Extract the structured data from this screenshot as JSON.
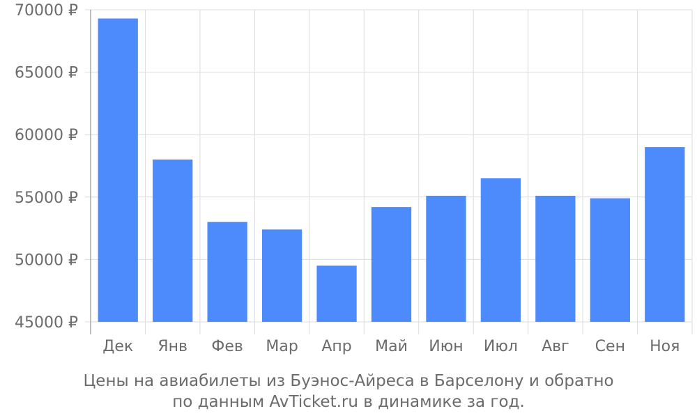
{
  "chart_data": {
    "type": "bar",
    "categories": [
      "Дек",
      "Янв",
      "Фев",
      "Мар",
      "Апр",
      "Май",
      "Июн",
      "Июл",
      "Авг",
      "Сен",
      "Ноя"
    ],
    "values": [
      69300,
      58000,
      53000,
      52400,
      49500,
      54200,
      55100,
      56500,
      55100,
      54900,
      59000
    ],
    "ylim": [
      45000,
      70000
    ],
    "yticks": [
      45000,
      50000,
      55000,
      60000,
      65000,
      70000
    ],
    "tick_suffix": " ₽",
    "bar_color": "#4d8afb",
    "grid": true,
    "caption_line1": "Цены на авиабилеты из Буэнос-Айреса в Барселону и обратно",
    "caption_line2": "по данным AvTicket.ru в динамике за год."
  }
}
